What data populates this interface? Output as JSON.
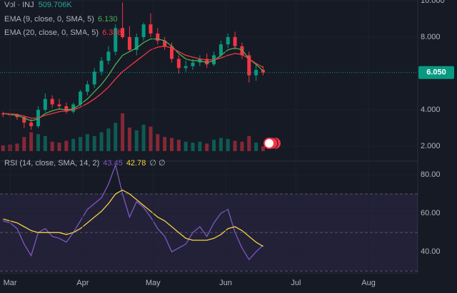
{
  "chart_data": {
    "type": "candlestick",
    "symbol": "Vol · INJ",
    "x": [
      -3,
      0,
      3,
      6,
      9,
      12,
      15,
      18,
      21,
      24,
      27,
      30,
      33,
      36,
      39,
      42,
      45,
      48,
      51,
      54,
      57,
      60,
      63,
      66,
      69,
      72,
      75,
      78,
      81,
      84,
      87,
      90,
      93,
      96,
      99,
      102,
      105,
      108
    ],
    "xlim": [
      -4.3,
      174
    ],
    "xticks": [
      {
        "value": 0,
        "label": "Mar"
      },
      {
        "value": 31,
        "label": "Apr"
      },
      {
        "value": 61,
        "label": "May"
      },
      {
        "value": 92,
        "label": "Jun"
      },
      {
        "value": 122,
        "label": "Jul"
      },
      {
        "value": 153,
        "label": "Aug"
      }
    ],
    "open": [
      3.8,
      3.75,
      3.7,
      3.6,
      3.3,
      3.1,
      4.0,
      4.6,
      4.3,
      4.2,
      3.9,
      4.3,
      5.0,
      5.4,
      6.1,
      6.7,
      7.2,
      8.5,
      8.0,
      7.3,
      8.0,
      8.7,
      8.2,
      7.8,
      7.5,
      6.8,
      6.3,
      6.4,
      6.6,
      6.8,
      6.5,
      7.0,
      7.6,
      8.0,
      7.5,
      7.0,
      5.9,
      6.2
    ],
    "high": [
      3.9,
      3.85,
      3.8,
      3.7,
      3.5,
      4.2,
      4.9,
      4.8,
      4.6,
      4.4,
      4.4,
      5.1,
      5.6,
      6.3,
      6.9,
      7.5,
      8.7,
      9.9,
      8.6,
      8.2,
      8.8,
      9.3,
      8.5,
      8.0,
      7.7,
      7.0,
      6.7,
      6.8,
      7.0,
      7.1,
      7.2,
      7.8,
      8.2,
      8.3,
      7.7,
      7.2,
      6.5,
      6.4
    ],
    "low": [
      3.6,
      3.55,
      3.45,
      3.0,
      2.9,
      3.0,
      3.9,
      4.1,
      4.0,
      3.8,
      3.8,
      4.2,
      4.8,
      5.2,
      5.9,
      6.5,
      7.0,
      7.9,
      7.2,
      7.0,
      7.8,
      8.0,
      7.6,
      7.3,
      6.6,
      6.0,
      6.1,
      6.2,
      6.4,
      6.3,
      6.4,
      6.9,
      7.4,
      7.3,
      6.8,
      5.5,
      5.6,
      5.9
    ],
    "close": [
      3.75,
      3.7,
      3.6,
      3.3,
      3.1,
      4.0,
      4.6,
      4.3,
      4.2,
      3.9,
      4.3,
      5.0,
      5.4,
      6.1,
      6.7,
      7.2,
      8.5,
      8.0,
      7.3,
      8.0,
      8.7,
      8.2,
      7.8,
      7.5,
      6.8,
      6.3,
      6.4,
      6.6,
      6.8,
      6.5,
      7.0,
      7.6,
      8.0,
      7.5,
      7.0,
      5.9,
      6.2,
      6.05
    ],
    "up_color": "#089981",
    "down_color": "#f23645",
    "ylim": [
      1.22,
      10.04
    ],
    "yticks": [
      {
        "value": 2,
        "label": "2.000"
      },
      {
        "value": 4,
        "label": "4.000"
      },
      {
        "value": 8,
        "label": "8.000"
      },
      {
        "value": 10,
        "label": "10.000"
      }
    ],
    "last_price": {
      "value": 6.05,
      "label": "6.050"
    },
    "volume": [
      600000,
      700000,
      800000,
      1500000,
      2000000,
      1800000,
      1600000,
      1000000,
      900000,
      1100000,
      1300000,
      1500000,
      1800000,
      1600000,
      2000000,
      2400000,
      3000000,
      4000000,
      2500000,
      2200000,
      2800000,
      2600000,
      1800000,
      1500000,
      1400000,
      1200000,
      1000000,
      900000,
      1000000,
      800000,
      1200000,
      1400000,
      1300000,
      1100000,
      1000000,
      1600000,
      900000,
      509706
    ],
    "volume_last_label": "509.706K",
    "volume_lim": [
      0,
      16000000
    ],
    "series": [
      {
        "name": "EMA (9, close, 0, SMA, 5)",
        "color": "#4caf50",
        "last_label": "6.130",
        "values": [
          3.8,
          3.75,
          3.7,
          3.55,
          3.4,
          3.5,
          3.8,
          3.95,
          4.05,
          4.0,
          4.05,
          4.3,
          4.6,
          5.0,
          5.4,
          5.9,
          6.5,
          7.0,
          7.2,
          7.4,
          7.7,
          7.9,
          7.9,
          7.8,
          7.5,
          7.1,
          6.8,
          6.7,
          6.7,
          6.6,
          6.7,
          7.0,
          7.3,
          7.4,
          7.3,
          6.8,
          6.5,
          6.13
        ]
      },
      {
        "name": "EMA (20, close, 0, SMA, 5)",
        "color": "#f23645",
        "last_label": "6.338",
        "values": [
          3.8,
          3.78,
          3.75,
          3.65,
          3.55,
          3.55,
          3.7,
          3.8,
          3.9,
          3.95,
          4.0,
          4.15,
          4.35,
          4.6,
          4.9,
          5.25,
          5.7,
          6.1,
          6.4,
          6.7,
          7.0,
          7.3,
          7.45,
          7.5,
          7.4,
          7.2,
          7.0,
          6.9,
          6.8,
          6.75,
          6.75,
          6.85,
          7.0,
          7.1,
          7.05,
          6.8,
          6.55,
          6.338
        ]
      }
    ],
    "rsi": {
      "name": "RSI (14, close, SMA, 14, 2)",
      "extra": "∅ ∅",
      "ylim": [
        29,
        87
      ],
      "yticks": [
        {
          "value": 40,
          "label": "40.00"
        },
        {
          "value": 60,
          "label": "60.00"
        },
        {
          "value": 80,
          "label": "80.00"
        }
      ],
      "levels": [
        70,
        50,
        30
      ],
      "band_color": "#7e57c2",
      "series": [
        {
          "color": "#7e57c2",
          "last_label": "43.45",
          "values": [
            56,
            55,
            52,
            44,
            38,
            50,
            52,
            48,
            47,
            45,
            50,
            56,
            62,
            65,
            68,
            75,
            85,
            70,
            58,
            66,
            63,
            58,
            52,
            48,
            40,
            42,
            44,
            50,
            53,
            48,
            55,
            60,
            62,
            50,
            42,
            36,
            40,
            43.45
          ]
        },
        {
          "color": "#f5d142",
          "last_label": "42.78",
          "values": [
            57,
            56,
            55,
            53,
            51,
            50,
            50,
            50,
            50,
            49,
            50,
            52,
            55,
            58,
            61,
            65,
            70,
            72,
            70,
            67,
            64,
            61,
            58,
            56,
            53,
            50,
            47,
            46,
            46,
            46,
            47,
            49,
            52,
            53,
            51,
            48,
            45,
            42.78
          ]
        }
      ]
    }
  }
}
